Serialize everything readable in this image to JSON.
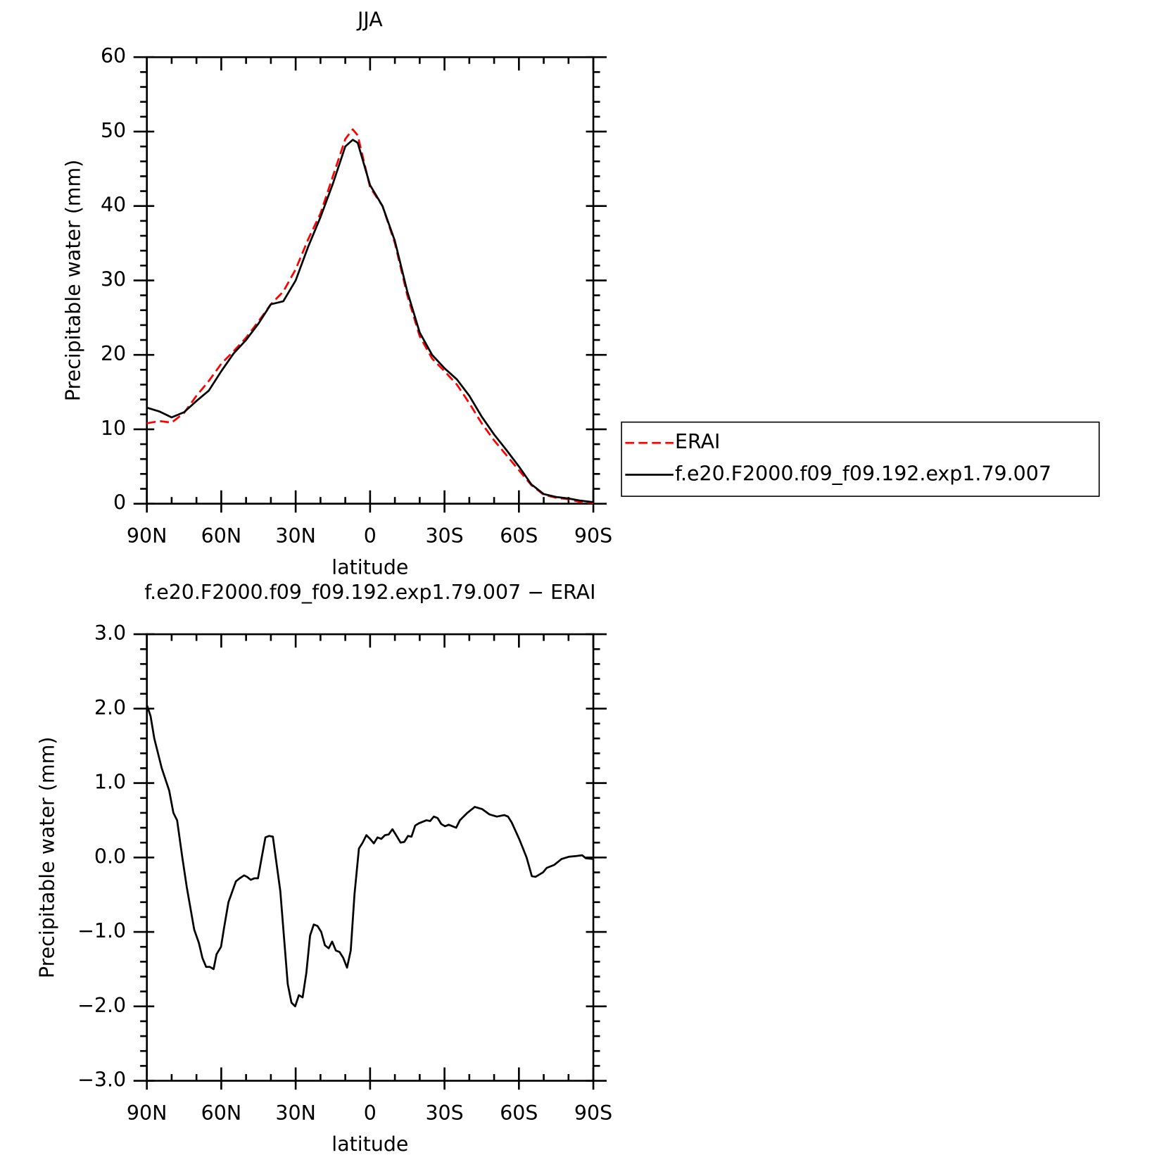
{
  "chart_data": [
    {
      "type": "line",
      "title": "JJA",
      "xlabel": "latitude",
      "ylabel": "Precipitable water (mm)",
      "x": [
        90,
        85,
        80,
        75,
        70,
        65,
        60,
        55,
        50,
        45,
        40,
        35,
        30,
        25,
        20,
        15,
        10,
        7,
        5,
        0,
        -5,
        -10,
        -15,
        -20,
        -25,
        -30,
        -35,
        -40,
        -45,
        -50,
        -55,
        -60,
        -65,
        -70,
        -75,
        -80,
        -85,
        -90
      ],
      "series": [
        {
          "name": "ERAI",
          "color": "#ff0000",
          "line_style": "dashed",
          "values": [
            10.8,
            11.1,
            10.9,
            12.2,
            14.5,
            16.5,
            18.8,
            20.5,
            22.3,
            24.5,
            26.8,
            28.5,
            31.5,
            35.5,
            39,
            44,
            49,
            50.3,
            49.5,
            42.5,
            40,
            35,
            28,
            22.5,
            19.5,
            17.8,
            16,
            13.5,
            10.8,
            8.5,
            6.5,
            4.5,
            2.5,
            1.2,
            0.8,
            0.6,
            0.2,
            0.1
          ]
        },
        {
          "name": "f.e20.F2000.f09_f09.192.exp1.79.007",
          "color": "#000000",
          "line_style": "solid",
          "values": [
            12.9,
            12.4,
            11.6,
            12.3,
            13.8,
            15.2,
            17.8,
            20.2,
            22,
            24.2,
            26.8,
            27.2,
            30,
            34.5,
            38.5,
            43,
            48,
            48.9,
            48.5,
            42.8,
            40,
            35.3,
            28.5,
            23,
            20,
            18.2,
            16.7,
            14.5,
            11.7,
            9.3,
            7.2,
            5,
            2.6,
            1.3,
            0.9,
            0.7,
            0.4,
            0.2
          ]
        }
      ],
      "xlim": [
        90,
        -90
      ],
      "xticks": [
        {
          "value": 90,
          "label": "90N"
        },
        {
          "value": 60,
          "label": "60N"
        },
        {
          "value": 30,
          "label": "30N"
        },
        0,
        {
          "value": -30,
          "label": "30S"
        },
        {
          "value": -60,
          "label": "60S"
        },
        {
          "value": -90,
          "label": "90S"
        }
      ],
      "ylim": [
        0,
        60
      ],
      "yticks": [
        0,
        10,
        20,
        30,
        40,
        50,
        60
      ],
      "legend": "right"
    },
    {
      "type": "line",
      "title": "f.e20.F2000.f09_f09.192.exp1.79.007 − ERAI",
      "xlabel": "latitude",
      "ylabel": "Precipitable water (mm)",
      "x": [
        90,
        88.5,
        87,
        84,
        81,
        79.3,
        77.8,
        75.7,
        73.9,
        70.9,
        69,
        67.6,
        66.1,
        64.6,
        63.1,
        61.9,
        60.1,
        58.9,
        57.1,
        54.1,
        52.6,
        50.8,
        49.6,
        48.1,
        46.7,
        45.2,
        43.7,
        42.2,
        40.7,
        39.2,
        36.2,
        33.2,
        31.7,
        30.2,
        28.7,
        27.2,
        25.7,
        24.2,
        22.7,
        21.2,
        19.7,
        18.2,
        16.7,
        15.3,
        13.8,
        12.3,
        10.8,
        9.3,
        7.8,
        6.3,
        4.5,
        3,
        1.5,
        0,
        -1.5,
        -3,
        -4.5,
        -6,
        -7.5,
        -9,
        -10.5,
        -12.3,
        -13.8,
        -15.3,
        -16.7,
        -18.2,
        -19.7,
        -21.2,
        -22.7,
        -24.2,
        -25.7,
        -27.2,
        -28.7,
        -30.2,
        -31.7,
        -34.7,
        -36.2,
        -39.2,
        -42.2,
        -45.2,
        -48.1,
        -51.1,
        -54.1,
        -55.6,
        -57.1,
        -60.1,
        -63.1,
        -65.2,
        -66.7,
        -69.7,
        -71.2,
        -74.2,
        -77.2,
        -80.1,
        -83.1,
        -85.5,
        -87,
        -90
      ],
      "values": [
        2.05,
        1.9,
        1.6,
        1.2,
        0.9,
        0.6,
        0.5,
        0,
        -0.4,
        -0.97,
        -1.15,
        -1.35,
        -1.47,
        -1.47,
        -1.5,
        -1.3,
        -1.2,
        -0.95,
        -0.6,
        -0.32,
        -0.28,
        -0.24,
        -0.26,
        -0.3,
        -0.28,
        -0.28,
        0,
        0.27,
        0.29,
        0.28,
        -0.45,
        -1.7,
        -1.95,
        -2,
        -1.85,
        -1.88,
        -1.55,
        -1.05,
        -0.9,
        -0.92,
        -1,
        -1.18,
        -1.22,
        -1.13,
        -1.25,
        -1.27,
        -1.35,
        -1.48,
        -1.25,
        -0.5,
        0.12,
        0.2,
        0.3,
        0.25,
        0.19,
        0.27,
        0.25,
        0.3,
        0.31,
        0.38,
        0.3,
        0.2,
        0.21,
        0.29,
        0.28,
        0.43,
        0.46,
        0.48,
        0.5,
        0.49,
        0.55,
        0.53,
        0.45,
        0.42,
        0.44,
        0.4,
        0.5,
        0.6,
        0.68,
        0.65,
        0.58,
        0.55,
        0.57,
        0.55,
        0.47,
        0.25,
        0,
        -0.25,
        -0.26,
        -0.2,
        -0.14,
        -0.1,
        -0.02,
        0.01,
        0.02,
        0.03,
        -0.01,
        -0.02
      ],
      "color": "#000000",
      "line_style": "solid",
      "xlim": [
        90,
        -90
      ],
      "xticks": [
        {
          "value": 90,
          "label": "90N"
        },
        {
          "value": 60,
          "label": "60N"
        },
        {
          "value": 30,
          "label": "30N"
        },
        0,
        {
          "value": -30,
          "label": "30S"
        },
        {
          "value": -60,
          "label": "60S"
        },
        {
          "value": -90,
          "label": "90S"
        }
      ],
      "ylim": [
        -3,
        3
      ],
      "yticks": [
        {
          "value": -3,
          "label": "−3.0"
        },
        {
          "value": -2,
          "label": "−2.0"
        },
        {
          "value": -1,
          "label": "−1.0"
        },
        {
          "value": 0,
          "label": "0.0"
        },
        {
          "value": 1,
          "label": "1.0"
        },
        {
          "value": 2,
          "label": "2.0"
        },
        {
          "value": 3,
          "label": "3.0"
        }
      ]
    }
  ]
}
